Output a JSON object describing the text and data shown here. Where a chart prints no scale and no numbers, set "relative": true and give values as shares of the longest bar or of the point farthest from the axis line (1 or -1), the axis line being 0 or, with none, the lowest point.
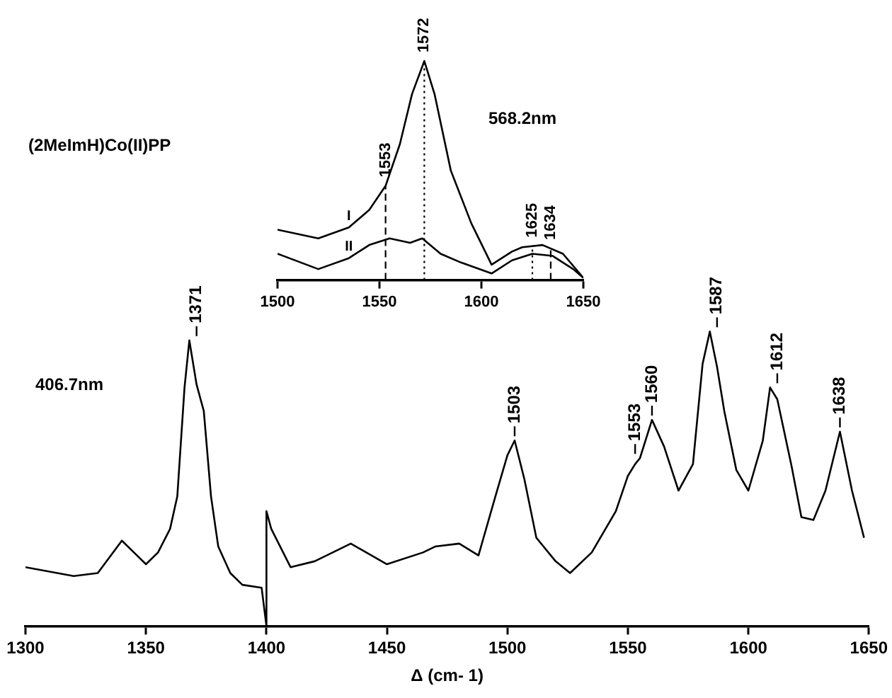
{
  "chart_data": [
    {
      "type": "line",
      "xlabel": "Δ (cm- 1)",
      "relative": true,
      "xlim": [
        1300,
        1650
      ],
      "xticks": [
        1300,
        1350,
        1400,
        1450,
        1500,
        1550,
        1600,
        1650
      ],
      "x": [
        1300,
        1320,
        1330,
        1340,
        1345,
        1350,
        1355,
        1360,
        1363,
        1366,
        1368,
        1371,
        1374,
        1377,
        1380,
        1385,
        1390,
        1398,
        1400,
        1400,
        1402,
        1410,
        1420,
        1435,
        1450,
        1465,
        1470,
        1480,
        1488,
        1495,
        1500,
        1503,
        1507,
        1512,
        1520,
        1526,
        1535,
        1545,
        1550,
        1553,
        1555,
        1560,
        1565,
        1571,
        1577,
        1581,
        1584,
        1587,
        1590,
        1595,
        1600,
        1606,
        1609,
        1612,
        1618,
        1622,
        1627,
        1632,
        1638,
        1643,
        1648
      ],
      "series": [
        {
          "color": "#000000",
          "values": [
            0.2,
            0.17,
            0.18,
            0.29,
            0.25,
            0.21,
            0.25,
            0.33,
            0.44,
            0.81,
            0.97,
            0.82,
            0.73,
            0.44,
            0.27,
            0.18,
            0.14,
            0.13,
            0,
            0.39,
            0.33,
            0.2,
            0.22,
            0.28,
            0.21,
            0.25,
            0.27,
            0.28,
            0.24,
            0.44,
            0.58,
            0.63,
            0.5,
            0.3,
            0.22,
            0.18,
            0.25,
            0.39,
            0.51,
            0.55,
            0.57,
            0.7,
            0.61,
            0.46,
            0.55,
            0.89,
            1.0,
            0.88,
            0.73,
            0.53,
            0.46,
            0.63,
            0.81,
            0.77,
            0.54,
            0.37,
            0.36,
            0.46,
            0.66,
            0.46,
            0.3
          ]
        }
      ],
      "annotations": [
        "(2MeImH)Co(II)PP",
        "406.7nm",
        {
          "text": "1371",
          "x": 1371,
          "y": 0.97
        },
        {
          "text": "1503",
          "x": 1503,
          "y": 0.63
        },
        {
          "text": "1553",
          "x": 1553,
          "y": 0.55
        },
        {
          "text": "1560",
          "x": 1560,
          "y": 0.7
        },
        {
          "text": "1587",
          "x": 1587,
          "y": 1.0
        },
        {
          "text": "1612",
          "x": 1612,
          "y": 0.77
        },
        {
          "text": "1638",
          "x": 1638,
          "y": 0.66
        }
      ]
    },
    {
      "type": "line",
      "relative": true,
      "xlim": [
        1500,
        1650
      ],
      "xticks": [
        1500,
        1550,
        1600,
        1650
      ],
      "series": [
        {
          "name": "I",
          "color": "#000000",
          "x": [
            1500,
            1520,
            1535,
            1545,
            1553,
            1560,
            1566,
            1572,
            1577,
            1585,
            1595,
            1605,
            1615,
            1620,
            1630,
            1640,
            1650
          ],
          "values": [
            0.23,
            0.19,
            0.24,
            0.32,
            0.43,
            0.62,
            0.85,
            1.0,
            0.85,
            0.5,
            0.26,
            0.07,
            0.13,
            0.15,
            0.16,
            0.12,
            0.01
          ]
        },
        {
          "name": "II",
          "color": "#000000",
          "x": [
            1500,
            1520,
            1535,
            1545,
            1555,
            1565,
            1571,
            1580,
            1590,
            1605,
            1615,
            1625,
            1635,
            1645,
            1650
          ],
          "values": [
            0.12,
            0.05,
            0.1,
            0.16,
            0.19,
            0.17,
            0.19,
            0.12,
            0.08,
            0.03,
            0.09,
            0.12,
            0.11,
            0.05,
            0.01
          ]
        }
      ],
      "ref_lines": [
        {
          "axis": "x",
          "value": 1553,
          "label": "1553",
          "line_style": "dashed"
        },
        {
          "axis": "x",
          "value": 1572,
          "label": "1572",
          "line_style": "dotted"
        },
        {
          "axis": "x",
          "value": 1625,
          "label": "1625",
          "line_style": "dotted"
        },
        {
          "axis": "x",
          "value": 1634,
          "label": "1634",
          "line_style": "dashed"
        }
      ],
      "annotations": [
        "568.2nm"
      ]
    }
  ]
}
